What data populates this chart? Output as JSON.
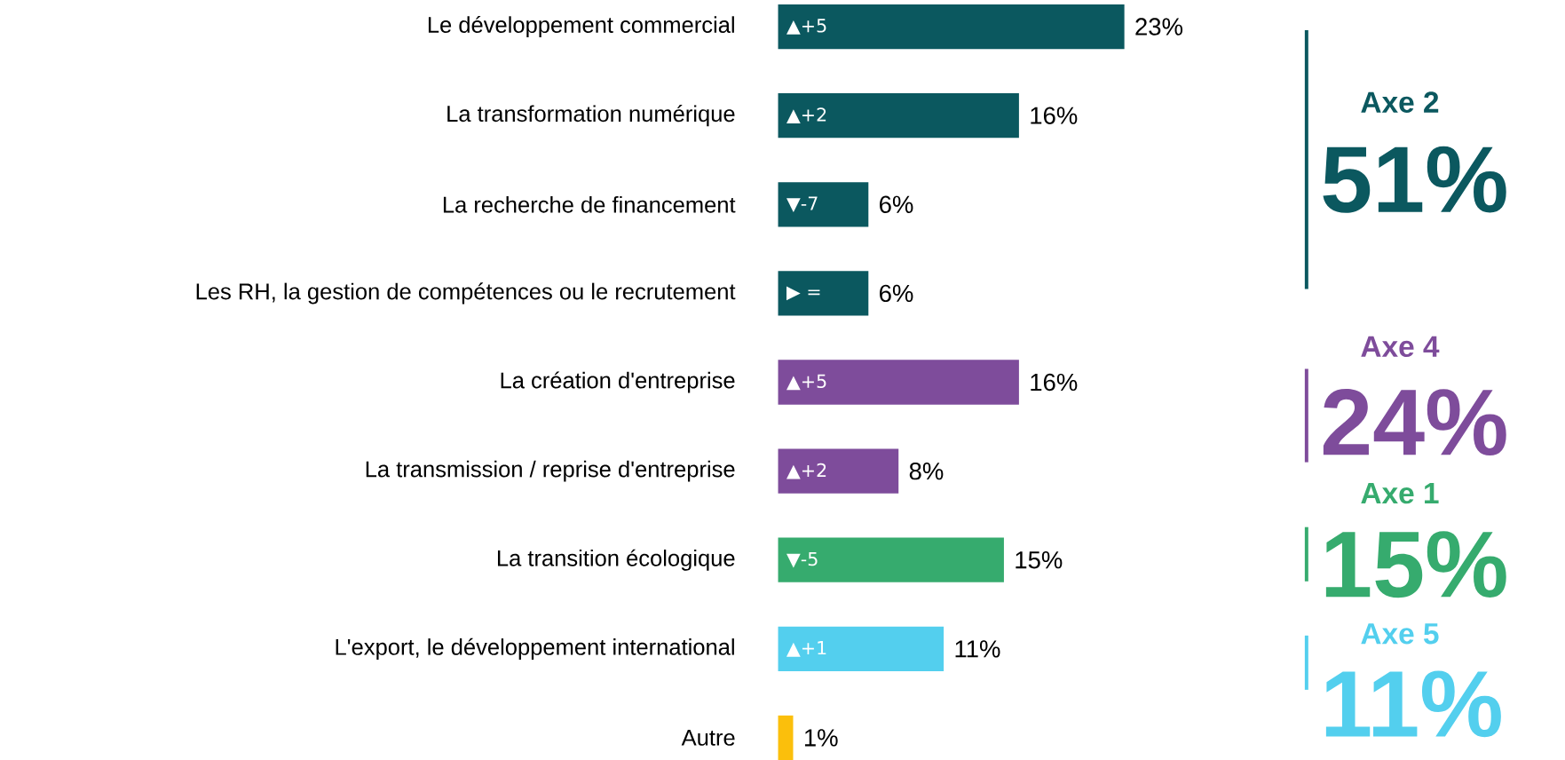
{
  "chart_data": {
    "type": "bar",
    "orientation": "horizontal",
    "categories": [
      "Le développement commercial",
      "La transformation numérique",
      "La recherche de financement",
      "Les RH, la gestion de compétences ou le recrutement",
      "La création d'entreprise",
      "La transmission / reprise d'entreprise",
      "La transition écologique",
      "L'export, le développement international",
      "Autre"
    ],
    "values": [
      23,
      16,
      6,
      6,
      16,
      8,
      15,
      11,
      1
    ],
    "colors": [
      "#0b585f",
      "#0b585f",
      "#0b585f",
      "#0b585f",
      "#7e4c9b",
      "#7e4c9b",
      "#36ab6e",
      "#53cfee",
      "#fbbf0c"
    ],
    "value_labels": [
      "23%",
      "16%",
      "6%",
      "6%",
      "16%",
      "8%",
      "15%",
      "11%",
      "1%"
    ],
    "annotations": [
      "▲+5",
      "▲+2",
      "▼-7",
      "▶ =",
      "▲+5",
      "▲+2",
      "▼-5",
      "▲+1",
      "Axe 2",
      "51%",
      "Axe 4",
      "24%",
      "Axe 1",
      "15%",
      "Axe 5",
      "11%"
    ]
  }
}
